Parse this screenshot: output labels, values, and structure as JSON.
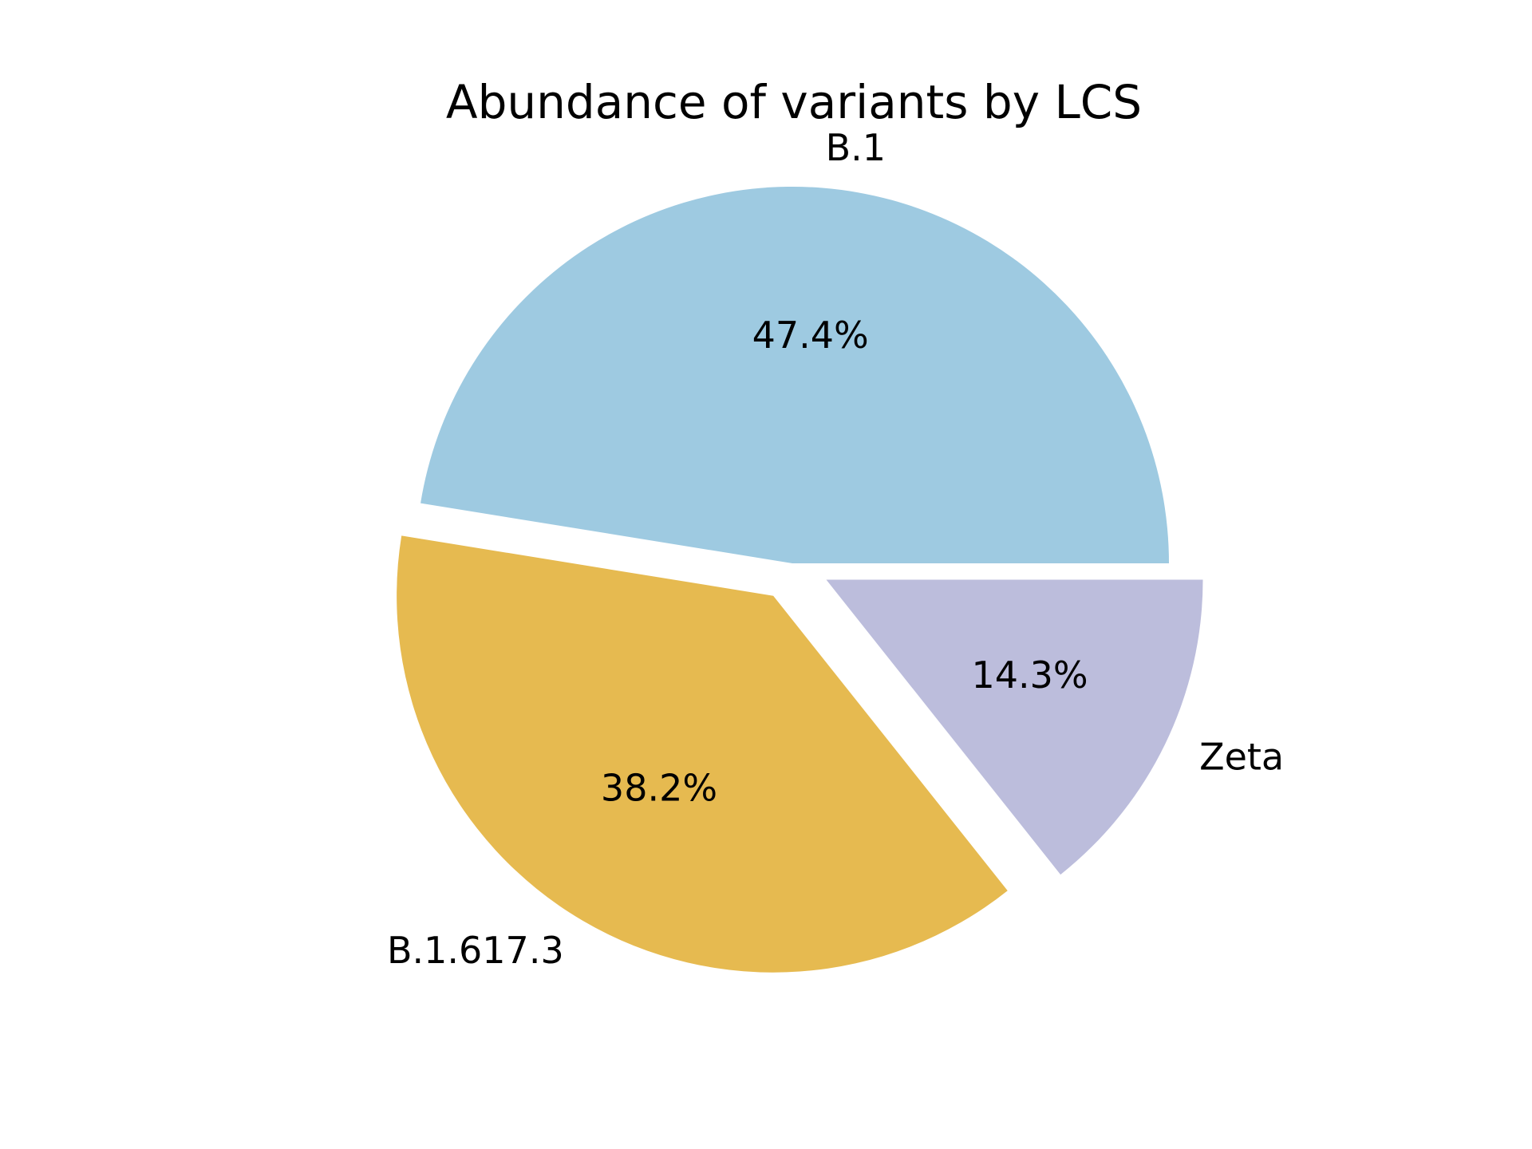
{
  "chart_data": {
    "type": "pie",
    "title": "Abundance of variants by LCS",
    "slices": [
      {
        "label": "B.1",
        "value": 47.4,
        "pct_label": "47.4%",
        "color": "#9ecae1",
        "exploded": false
      },
      {
        "label": "B.1.617.3",
        "value": 38.2,
        "pct_label": "38.2%",
        "color": "#e6ba50",
        "exploded": true
      },
      {
        "label": "Zeta",
        "value": 14.3,
        "pct_label": "14.3%",
        "color": "#bcbddc",
        "exploded": true
      }
    ],
    "start_angle_deg": 0,
    "direction": "counterclockwise",
    "legend": "none"
  }
}
